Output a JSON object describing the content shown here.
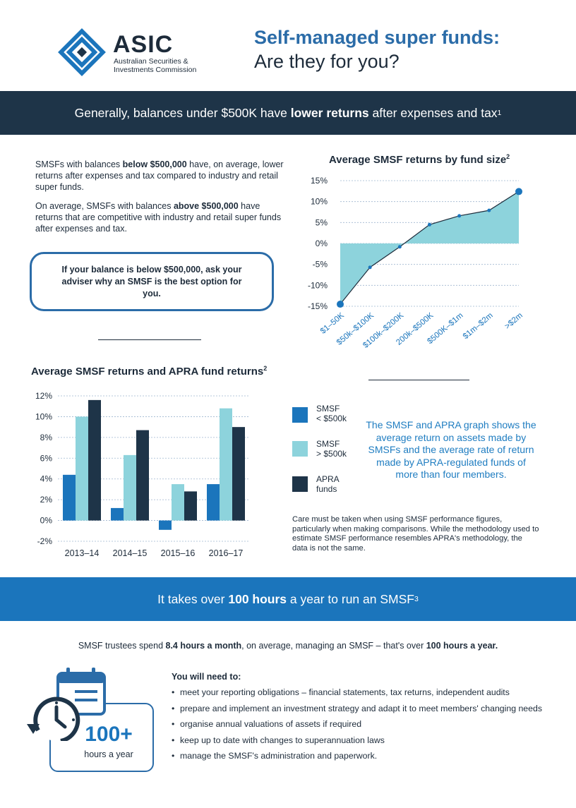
{
  "header": {
    "logo_word": "ASIC",
    "logo_sub": "Australian Securities & Investments Commission",
    "title_line1": "Self-managed super funds:",
    "title_line2": "Are they for you?"
  },
  "band1": {
    "pre": "Generally, balances under $500K have ",
    "bold": "lower returns",
    "post": " after expenses and tax",
    "sup": "1"
  },
  "intro": {
    "p1_pre": "SMSFs with balances ",
    "p1_bold": "below $500,000",
    "p1_post": " have, on average, lower returns after expenses and tax compared to industry and retail super funds.",
    "p2_pre": "On average, SMSFs with balances ",
    "p2_bold": "above $500,000",
    "p2_post": " have returns that are competitive with industry and retail super funds after expenses and tax."
  },
  "callout": "If your balance is below $500,000, ask your adviser why an SMSF is the best option for you.",
  "chart_data": [
    {
      "type": "area",
      "title": "Average SMSF returns by fund size",
      "title_sup": "2",
      "categories": [
        "$1–50K",
        "$50k–$100K",
        "$100k–$200K",
        "200k–$500K",
        "$500K–$1m",
        "$1m–$2m",
        ">$2m"
      ],
      "values": [
        -14.5,
        -5.7,
        -0.8,
        4.5,
        6.6,
        7.9,
        12.4
      ],
      "ylim": [
        -15,
        15
      ],
      "yticks": [
        "15%",
        "10%",
        "5%",
        "0%",
        "-5%",
        "-10%",
        "-15%"
      ],
      "color_fill": "#8dd3dc",
      "color_line": "#1d2b3a",
      "color_point": "#1b75bc"
    },
    {
      "type": "bar",
      "title": "Average SMSF returns and APRA fund returns",
      "title_sup": "2",
      "categories": [
        "2013–14",
        "2014–15",
        "2015–16",
        "2016–17"
      ],
      "series": [
        {
          "name": "SMSF < $500k",
          "values": [
            4.4,
            1.2,
            -0.9,
            3.5
          ],
          "color": "#1b75bc"
        },
        {
          "name": "SMSF > $500k",
          "values": [
            10.0,
            6.3,
            3.5,
            10.8
          ],
          "color": "#8dd3dc"
        },
        {
          "name": "APRA funds",
          "values": [
            11.6,
            8.7,
            2.8,
            9.0
          ],
          "color": "#1e3448"
        }
      ],
      "ylim": [
        -2,
        12
      ],
      "yticks": [
        "12%",
        "10%",
        "8%",
        "6%",
        "4%",
        "2%",
        "0%",
        "-2%"
      ],
      "legend_position": "right"
    }
  ],
  "legend": [
    {
      "line1": "SMSF",
      "line2": "< $500k",
      "color": "#1b75bc"
    },
    {
      "line1": "SMSF",
      "line2": "> $500k",
      "color": "#8dd3dc"
    },
    {
      "line1": "APRA",
      "line2": "funds",
      "color": "#1e3448"
    }
  ],
  "blue_note": "The SMSF and APRA graph shows the average return on assets made by SMSFs and the average rate of return made by APRA-regulated funds of more than four members.",
  "small_note": "Care must be taken when using SMSF performance figures, particularly when making comparisons. While the methodology used to estimate SMSF performance resembles APRA's methodology, the data is not the same.",
  "band2": {
    "pre": "It takes over ",
    "bold": "100 hours",
    "post": " a year to run an SMSF",
    "sup": "3"
  },
  "trustee": {
    "pre": "SMSF trustees spend ",
    "bold1": "8.4 hours a month",
    "mid": ", on average, managing an SMSF – that's over ",
    "bold2": "100 hours a year."
  },
  "needs": {
    "title": "You will need to:",
    "items": [
      "meet your reporting obligations – financial statements, tax returns, independent audits",
      "prepare and implement an investment strategy and adapt it to meet members' changing needs",
      "organise annual valuations of assets if required",
      "keep up to date with changes to superannuation laws",
      "manage the SMSF's administration and paperwork."
    ]
  },
  "hours": {
    "number": "100+",
    "label": "hours a year"
  },
  "colors": {
    "navy": "#1e3448",
    "blue": "#1b75bc",
    "teal": "#8dd3dc",
    "accent": "#2b6ca8"
  }
}
